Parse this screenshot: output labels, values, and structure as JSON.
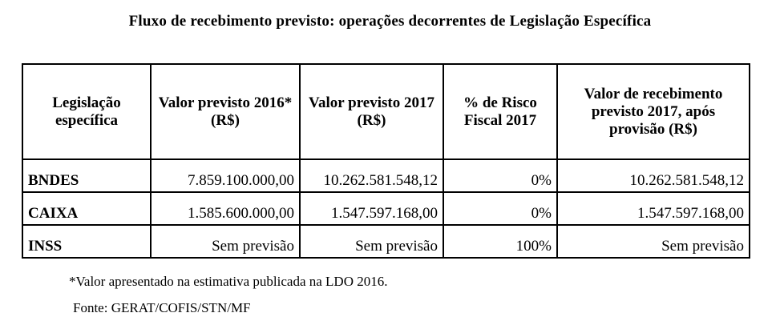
{
  "title": "Fluxo de recebimento previsto: operações decorrentes de Legislação Específica",
  "table": {
    "headers": [
      "Legislação específica",
      "Valor previsto 2016* (R$)",
      "Valor previsto 2017 (R$)",
      "% de Risco Fiscal 2017",
      "Valor de recebimento previsto 2017, após provisão (R$)"
    ],
    "rows": [
      [
        "BNDES",
        "7.859.100.000,00",
        "10.262.581.548,12",
        "0%",
        "10.262.581.548,12"
      ],
      [
        "CAIXA",
        "1.585.600.000,00",
        "1.547.597.168,00",
        "0%",
        "1.547.597.168,00"
      ],
      [
        "INSS",
        "Sem previsão",
        "Sem previsão",
        "100%",
        "Sem previsão"
      ]
    ]
  },
  "footnote": "*Valor apresentado na estimativa publicada na LDO 2016.",
  "source": "Fonte: GERAT/COFIS/STN/MF"
}
